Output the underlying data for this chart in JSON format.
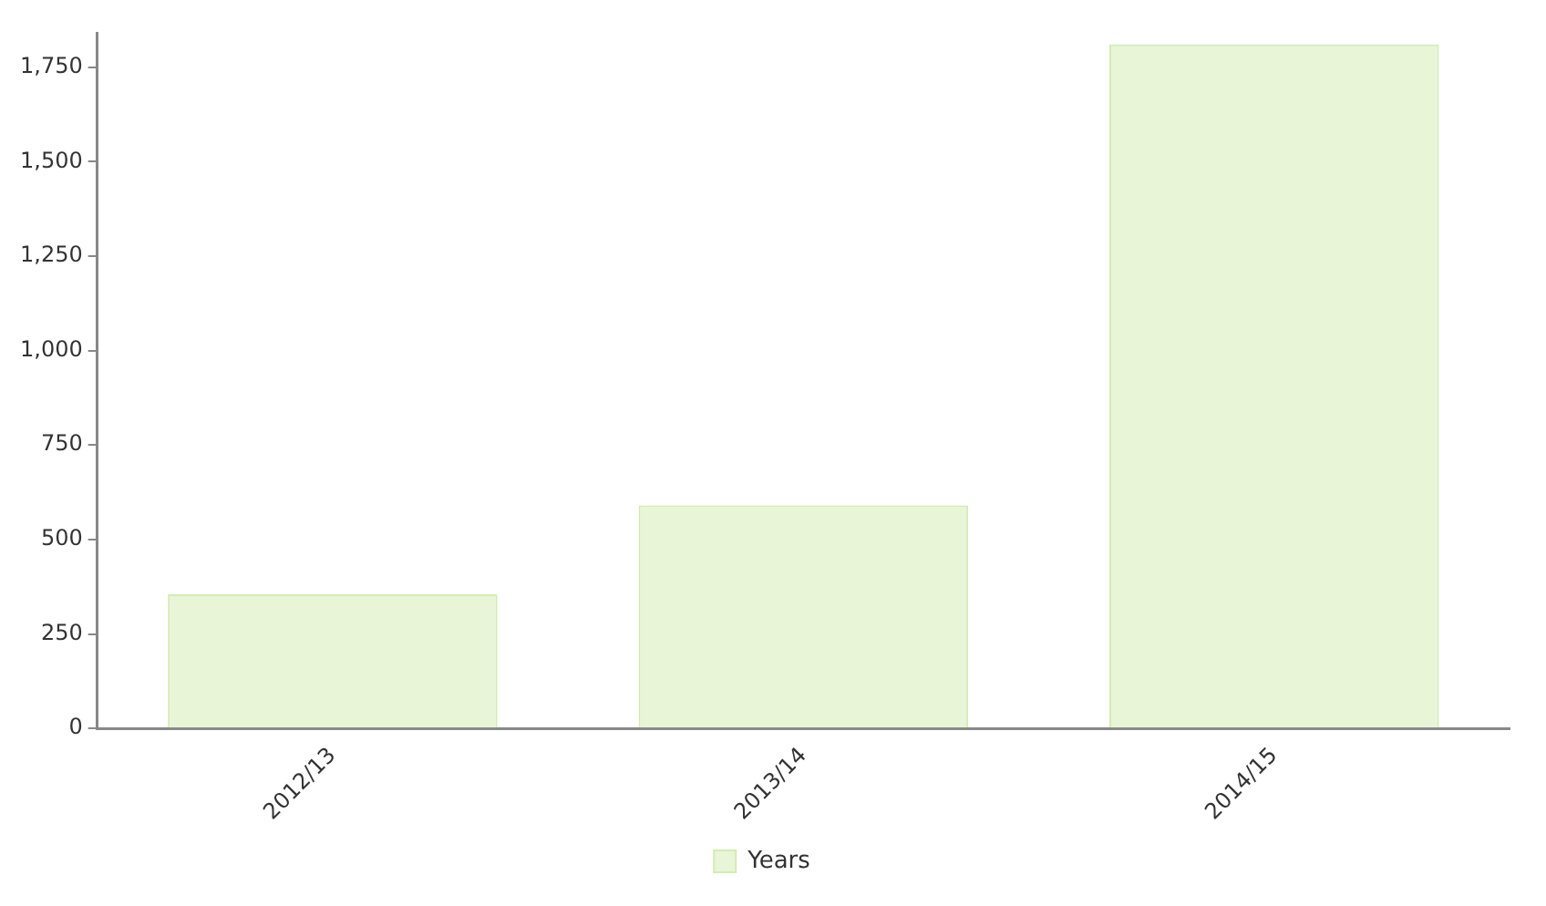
{
  "chart_data": {
    "type": "bar",
    "categories": [
      "2012/13",
      "2013/14",
      "2014/15"
    ],
    "series": [
      {
        "name": "Years",
        "color": "#e9f5d7",
        "values": [
          355,
          590,
          1810
        ]
      }
    ],
    "ylim": [
      0,
      1840
    ],
    "yticks": [
      {
        "value": 0,
        "label": "0"
      },
      {
        "value": 250,
        "label": "250"
      },
      {
        "value": 500,
        "label": "500"
      },
      {
        "value": 750,
        "label": "750"
      },
      {
        "value": 1000,
        "label": "1,000"
      },
      {
        "value": 1250,
        "label": "1,250"
      },
      {
        "value": 1500,
        "label": "1,500"
      },
      {
        "value": 1750,
        "label": "1,750"
      }
    ],
    "grid": false,
    "legend": "bottom"
  }
}
